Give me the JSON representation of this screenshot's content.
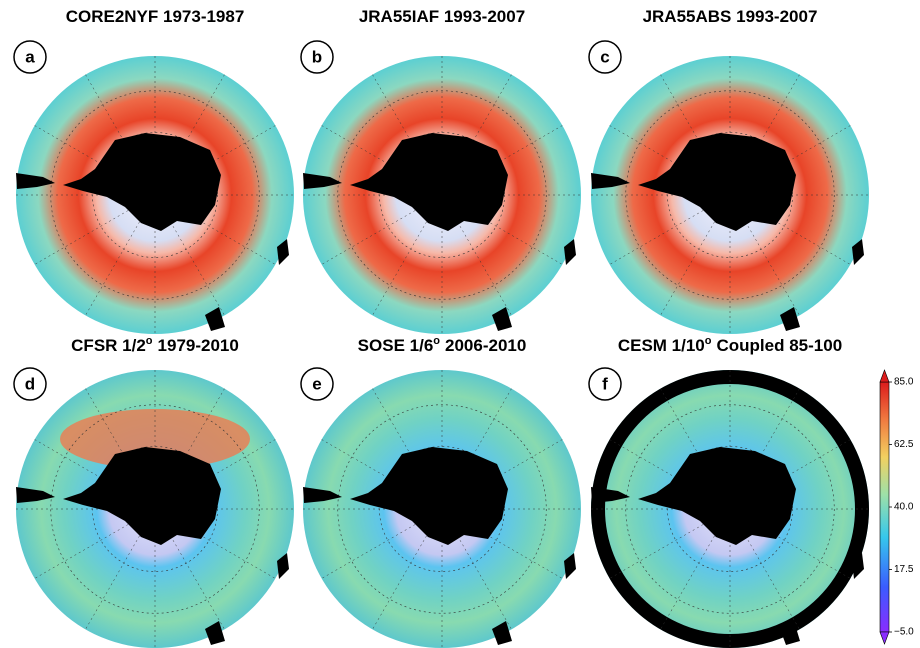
{
  "panels": [
    {
      "label": "a",
      "title": "CORE2NYF 1973-1987"
    },
    {
      "label": "b",
      "title": "JRA55IAF 1993-2007"
    },
    {
      "label": "c",
      "title": "JRA55ABS 1993-2007"
    },
    {
      "label": "d",
      "title": "CFSR 1/2",
      "title_sup": "o",
      "title_end": "1979-2010"
    },
    {
      "label": "e",
      "title": "SOSE 1/6",
      "title_sup": "o",
      "title_end": "2006-2010"
    },
    {
      "label": "f",
      "title": "CESM 1/10",
      "title_sup": "o",
      "title_end": "Coupled 85-100"
    }
  ],
  "colorbar": {
    "lim": [
      -5,
      85
    ],
    "ticks": [
      {
        "value": 85,
        "label": "85.0"
      },
      {
        "value": 62.5,
        "label": "62.5"
      },
      {
        "value": 40,
        "label": "40.0"
      },
      {
        "value": 17.5,
        "label": "17.5"
      },
      {
        "value": -5,
        "label": "−5.0"
      }
    ]
  }
}
